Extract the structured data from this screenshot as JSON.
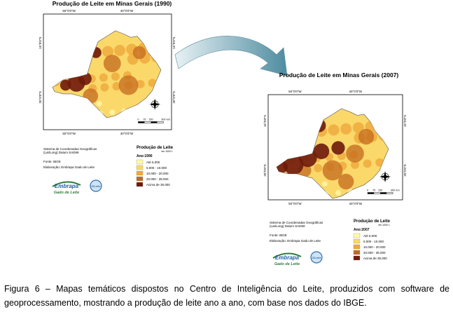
{
  "figure": {
    "maps": [
      {
        "title": "Produção de Leite em Minas Gerais (1990)",
        "x_labels": [
          "50°0'0\"W",
          "40°0'0\"W"
        ],
        "y_labels": [
          "15°0'0\"S",
          "20°0'0\"S"
        ],
        "scale": [
          "0",
          "75",
          "150",
          "300",
          "km"
        ],
        "info": [
          "Sistema de Coordenadas Geográficas",
          "(Lat/Long) Datum SAD69",
          "Fonte: IBGE",
          "Elaboração: Embrapa Gado de Leite"
        ],
        "legend": {
          "title": "Produção de Leite",
          "unit": "em 1000 L",
          "year": "Ano:1990",
          "items": [
            "Até 5.000",
            "5.000 - 10.000",
            "10.000 - 20.000",
            "20.000 - 35.000",
            "Acima de 35.000"
          ]
        },
        "logo": {
          "name": "Embrapa",
          "subtitle": "Gado de Leite",
          "ci": "CILeite"
        }
      },
      {
        "title": "Produção de Leite em Minas Gerais (2007)",
        "x_labels": [
          "50°0'0\"W",
          "40°0'0\"W"
        ],
        "y_labels": [
          "15°0'0\"S",
          "20°0'0\"S"
        ],
        "scale": [
          "0",
          "75",
          "150",
          "300",
          "km"
        ],
        "info": [
          "Sistema de Coordenadas Geográficas",
          "(Lat/Long) Datum SAD69",
          "Fonte: IBGE",
          "Elaboração: Embrapa Gado de Leite"
        ],
        "legend": {
          "title": "Produção de Leite",
          "unit": "em 1000 L",
          "year": "Ano:2007",
          "items": [
            "Até 5.000",
            "5.000 - 10.000",
            "10.000 - 20.000",
            "20.000 - 35.000",
            "Acima de 35.000"
          ]
        },
        "logo": {
          "name": "Embrapa",
          "subtitle": "Gado de Leite",
          "ci": "CILeite"
        }
      }
    ],
    "caption": "Figura 6 – Mapas temáticos dispostos no Centro de Inteligência do Leite, produzidos com software de geoprocessamento, mostrando a produção de leite ano a ano, com base nos dados do IBGE."
  }
}
